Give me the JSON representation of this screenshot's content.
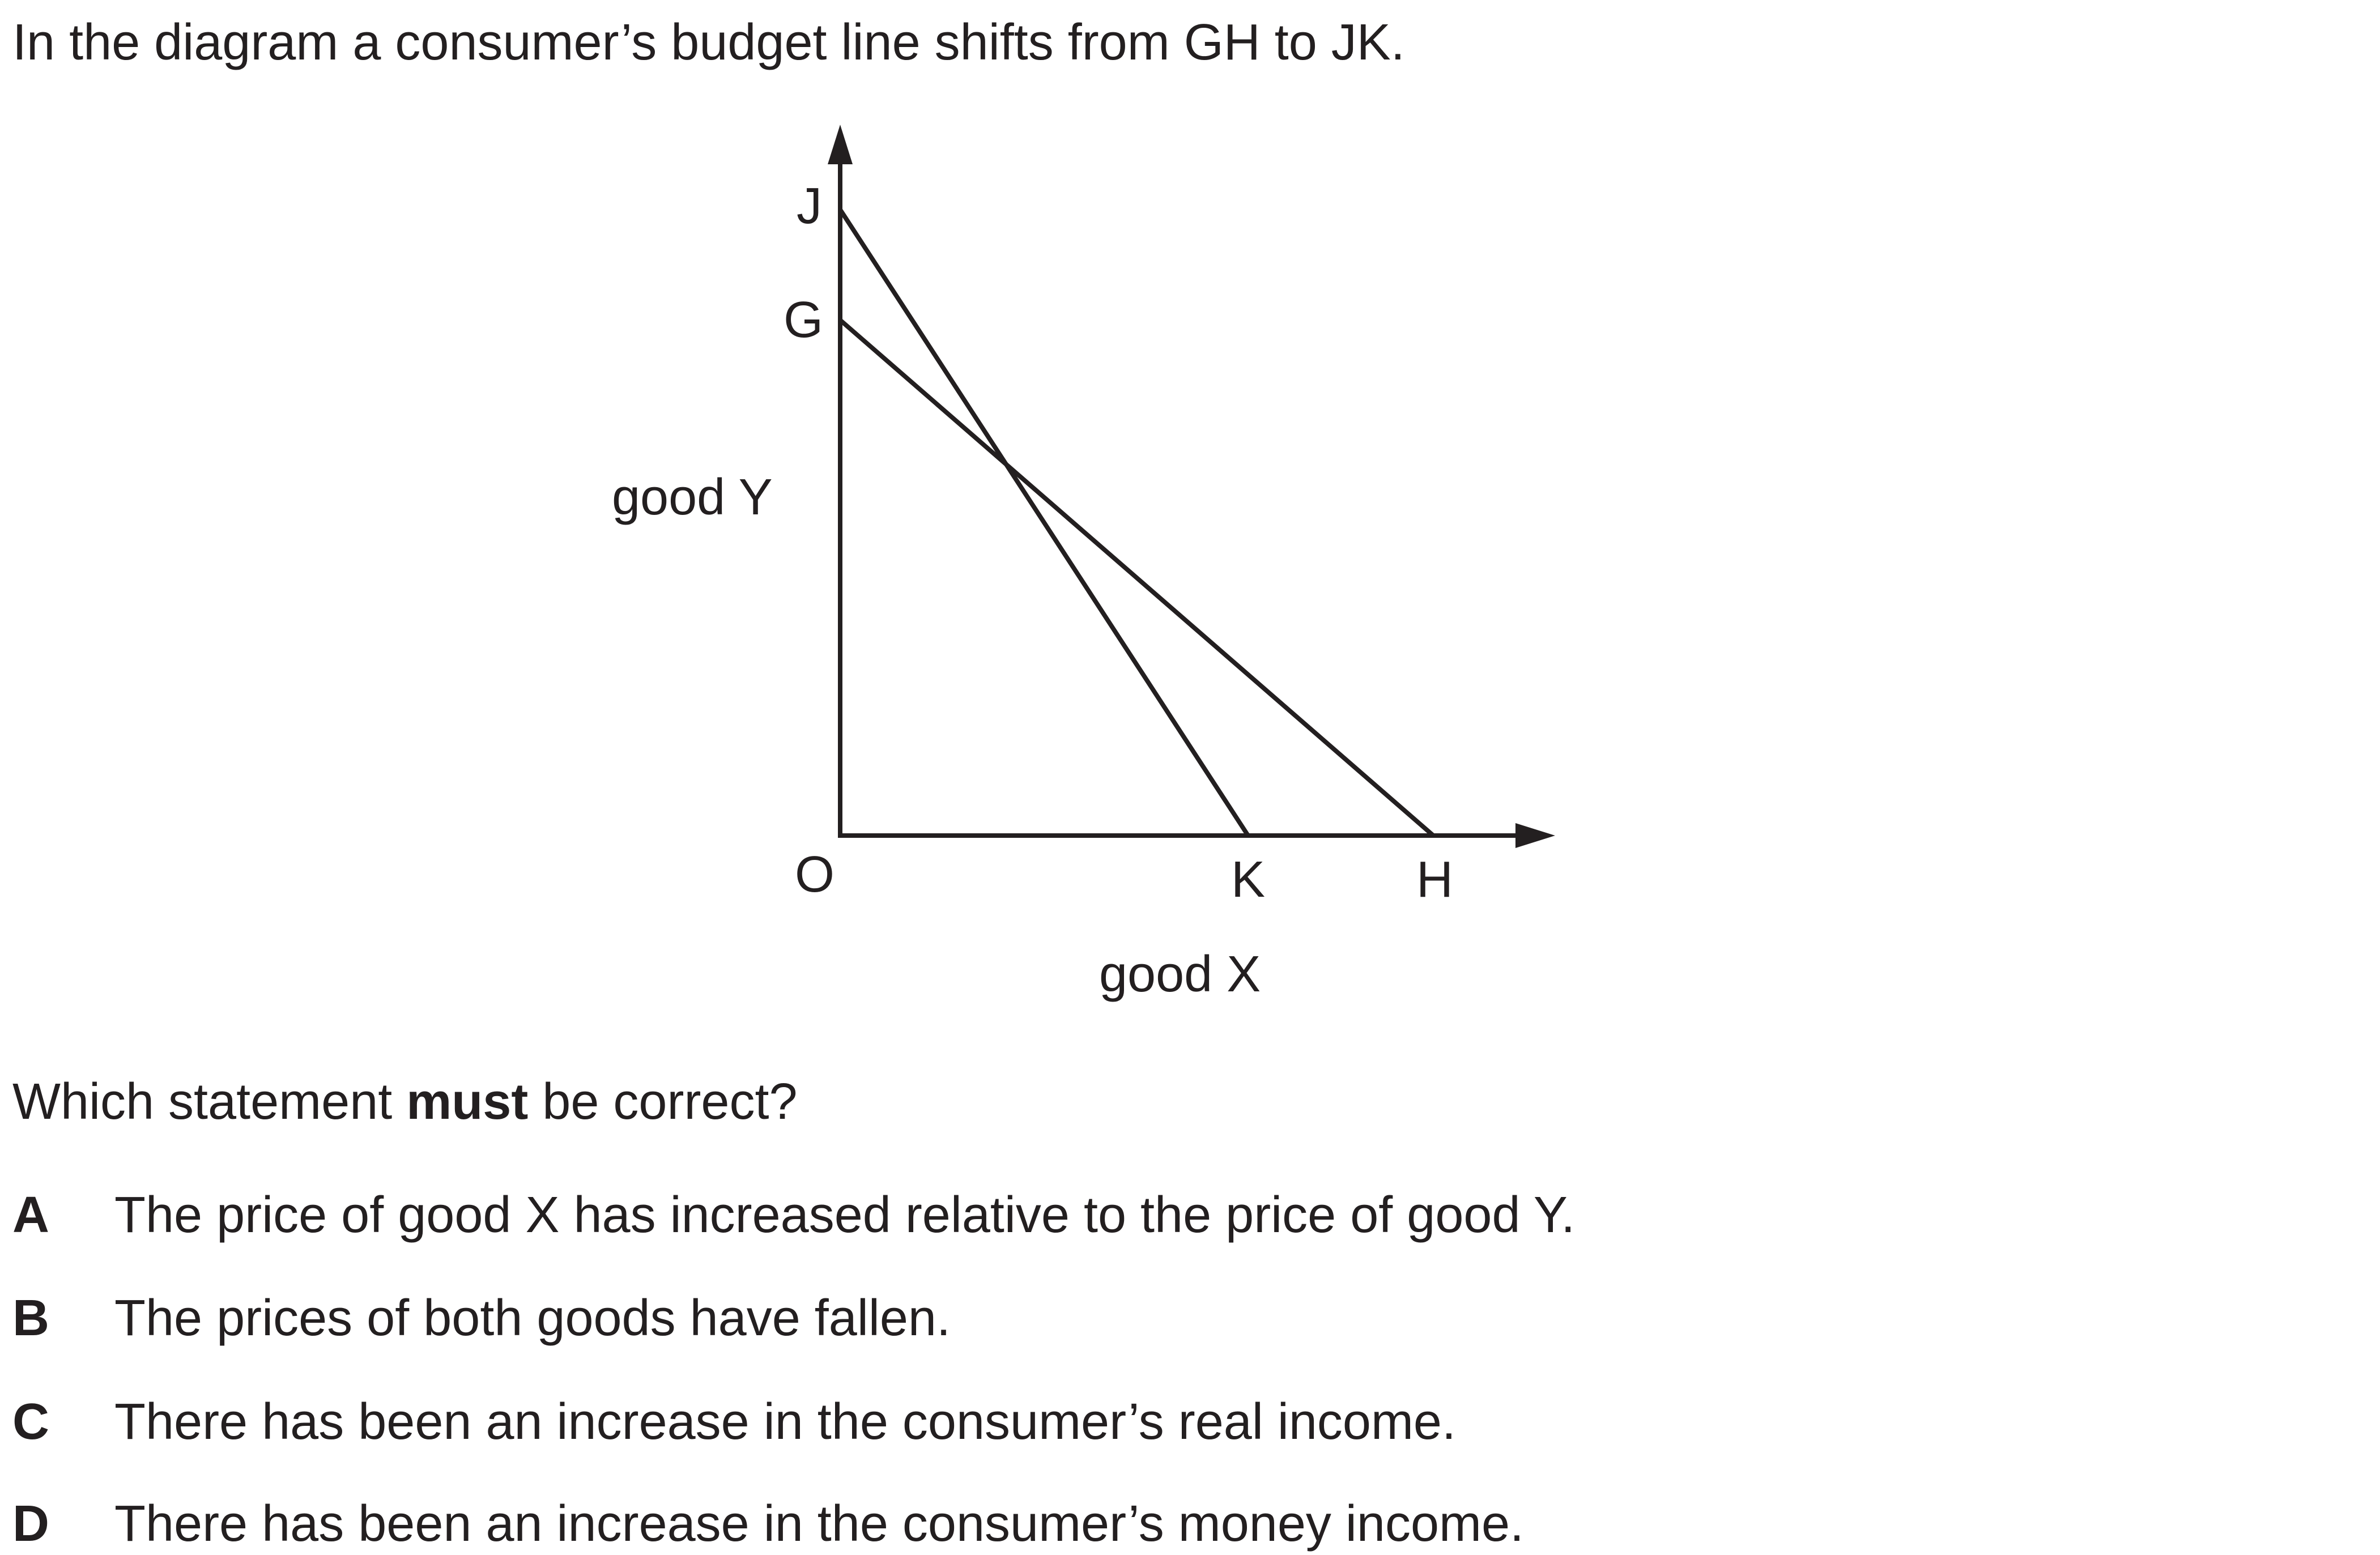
{
  "question": {
    "intro": "In the diagram a consumer’s budget line shifts from GH to JK.",
    "prompt_before": "Which statement ",
    "prompt_emphasis": "must",
    "prompt_after": " be correct?"
  },
  "diagram": {
    "y_axis_label": "good Y",
    "x_axis_label": "good X",
    "origin_label": "O",
    "points": {
      "J": "J",
      "G": "G",
      "K": "K",
      "H": "H"
    },
    "line_color": "#231f20"
  },
  "options": [
    {
      "letter": "A",
      "text": "The price of good X has increased relative to the price of good Y."
    },
    {
      "letter": "B",
      "text": "The prices of both goods have fallen."
    },
    {
      "letter": "C",
      "text": "There has been an increase in the consumer’s real income."
    },
    {
      "letter": "D",
      "text": "There has been an increase in the consumer’s money income."
    }
  ]
}
